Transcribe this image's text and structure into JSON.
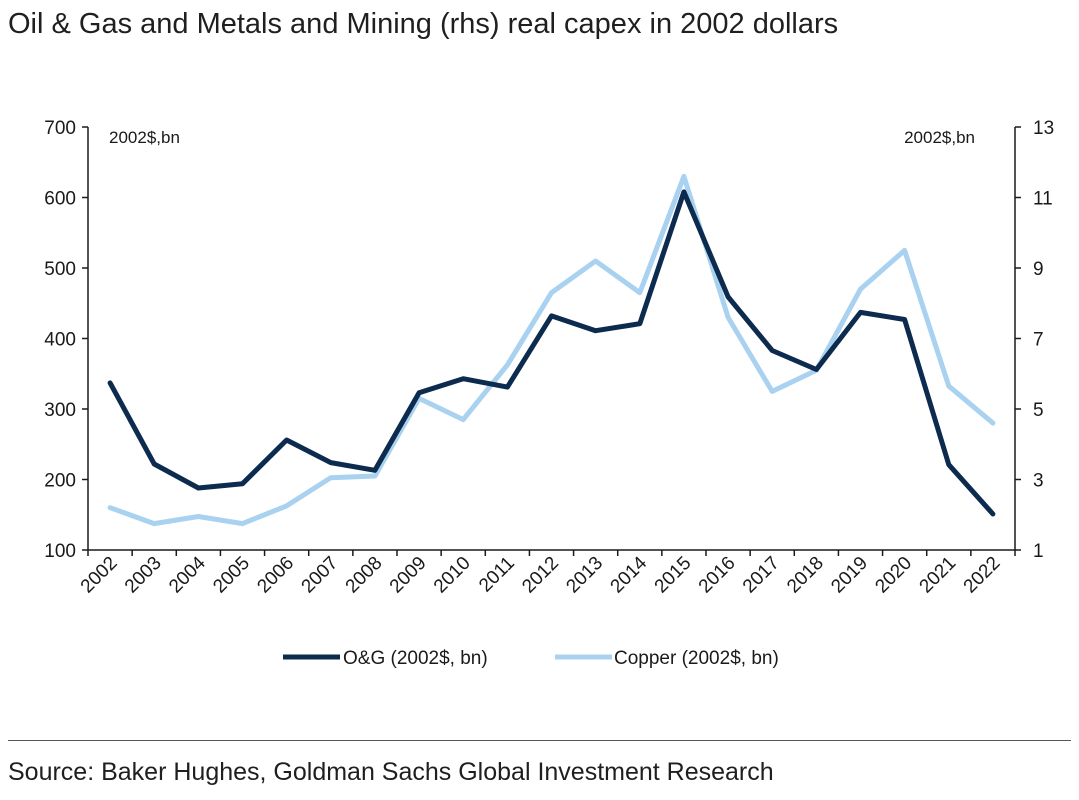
{
  "title": "Oil & Gas and Metals and Mining (rhs) real capex in 2002 dollars",
  "source": "Source: Baker Hughes, Goldman Sachs Global Investment Research",
  "colors": {
    "og": "#0c2b4e",
    "copper": "#a9d1f0",
    "axis": "#1a1a1a"
  },
  "chart_data": {
    "type": "line",
    "title": "Oil & Gas and Metals and Mining (rhs) real capex in 2002 dollars",
    "left_axis_label": "2002$,bn",
    "right_axis_label": "2002$,bn",
    "ylim_left": [
      100,
      700
    ],
    "yticks_left": [
      100,
      200,
      300,
      400,
      500,
      600,
      700
    ],
    "ylim_right": [
      1,
      13
    ],
    "yticks_right": [
      1,
      3,
      5,
      7,
      9,
      11,
      13
    ],
    "categories": [
      "2002",
      "2003",
      "2004",
      "2005",
      "2006",
      "2007",
      "2008",
      "2009",
      "2010",
      "2011",
      "2012",
      "2013",
      "2014",
      "2015",
      "2016",
      "2017",
      "2018",
      "2019",
      "2020",
      "2021",
      "2022"
    ],
    "series": [
      {
        "name": "O&G (2002$, bn)",
        "axis": "left",
        "values": [
          337,
          222,
          188,
          194,
          256,
          224,
          213,
          323,
          343,
          331,
          432,
          411,
          421,
          608,
          459,
          383,
          356,
          437,
          427,
          221,
          151
        ]
      },
      {
        "name": "Copper (2002$, bn)",
        "axis": "right",
        "values": [
          2.2,
          1.75,
          1.95,
          1.75,
          2.25,
          3.05,
          3.1,
          5.3,
          4.7,
          6.25,
          8.3,
          9.2,
          8.3,
          11.6,
          7.6,
          5.5,
          6.1,
          8.4,
          9.5,
          5.65,
          4.6
        ]
      }
    ],
    "legend": {
      "position": "bottom",
      "entries": [
        "O&G (2002$, bn)",
        "Copper (2002$, bn)"
      ]
    }
  }
}
